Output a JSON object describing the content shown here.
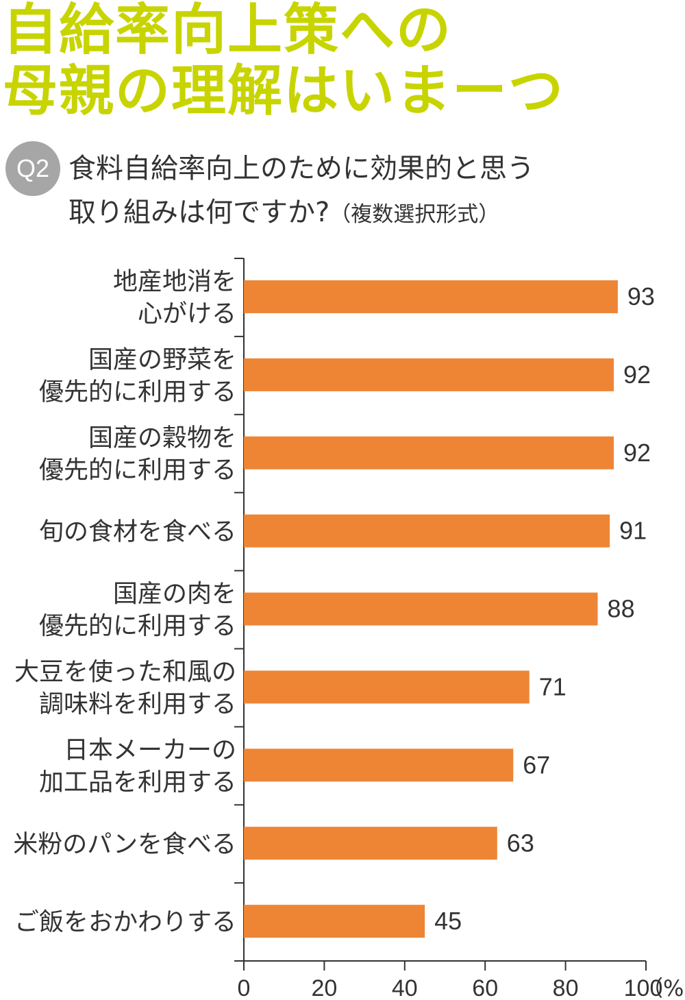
{
  "title": {
    "line1": "自給率向上策への",
    "line2": "母親の理解はいまーつ"
  },
  "question": {
    "badge": "Q2",
    "line1": "食料自給率向上のために効果的と思う",
    "line2": "取り組みは何ですか?",
    "note": "（複数選択形式）"
  },
  "colors": {
    "title": "#c8d400",
    "bar": "#ee8535",
    "badge": "#a6a6a6",
    "axis": "#333333"
  },
  "chart_data": {
    "type": "bar",
    "orientation": "horizontal",
    "categories": [
      [
        "地産地消を",
        "心がける"
      ],
      [
        "国産の野菜を",
        "優先的に利用する"
      ],
      [
        "国産の穀物を",
        "優先的に利用する"
      ],
      [
        "旬の食材を食べる"
      ],
      [
        "国産の肉を",
        "優先的に利用する"
      ],
      [
        "大豆を使った和風の",
        "調味料を利用する"
      ],
      [
        "日本メーカーの",
        "加工品を利用する"
      ],
      [
        "米粉のパンを食べる"
      ],
      [
        "ご飯をおかわりする"
      ]
    ],
    "values": [
      93,
      92,
      92,
      91,
      88,
      71,
      67,
      63,
      45
    ],
    "xlim": [
      0,
      100
    ],
    "xticks": [
      "0",
      "20",
      "40",
      "60",
      "80",
      "100"
    ],
    "x_unit": "（%）",
    "data_labels": true,
    "grid": false
  }
}
